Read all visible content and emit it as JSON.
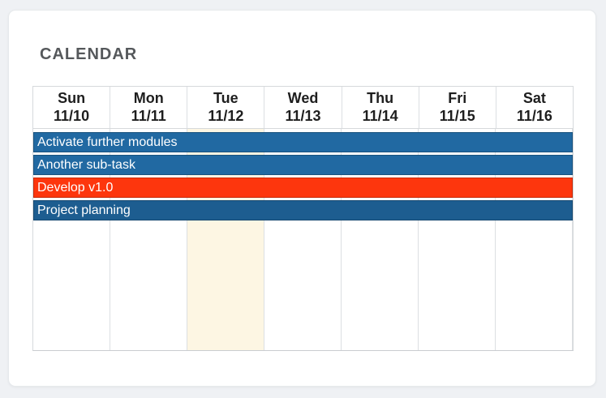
{
  "title": "CALENDAR",
  "colors": {
    "page_bg": "#eff1f4",
    "card_bg": "#ffffff",
    "event_blue": "#2169a2",
    "event_blue_dark": "#1d5d90",
    "event_red": "#fd360d",
    "today_highlight": "#fdf6e3",
    "grid_border": "#d6d9dc",
    "header_text": "#1e1e1e",
    "title_text": "#55585b"
  },
  "calendar": {
    "days": [
      {
        "name": "Sun",
        "date": "11/10",
        "is_today": false,
        "highlight": null
      },
      {
        "name": "Mon",
        "date": "11/11",
        "is_today": false,
        "highlight": null
      },
      {
        "name": "Tue",
        "date": "11/12",
        "is_today": true,
        "highlight": "#fdf6e3"
      },
      {
        "name": "Wed",
        "date": "11/13",
        "is_today": false,
        "highlight": null
      },
      {
        "name": "Thu",
        "date": "11/14",
        "is_today": false,
        "highlight": null
      },
      {
        "name": "Fri",
        "date": "11/15",
        "is_today": false,
        "highlight": null
      },
      {
        "name": "Sat",
        "date": "11/16",
        "is_today": false,
        "highlight": null
      }
    ],
    "events": [
      {
        "label": "Activate further modules",
        "bg": "#2169a2"
      },
      {
        "label": "Another sub-task",
        "bg": "#2169a2"
      },
      {
        "label": "Develop v1.0",
        "bg": "#fd360d"
      },
      {
        "label": "Project planning",
        "bg": "#1d5d90"
      }
    ]
  }
}
